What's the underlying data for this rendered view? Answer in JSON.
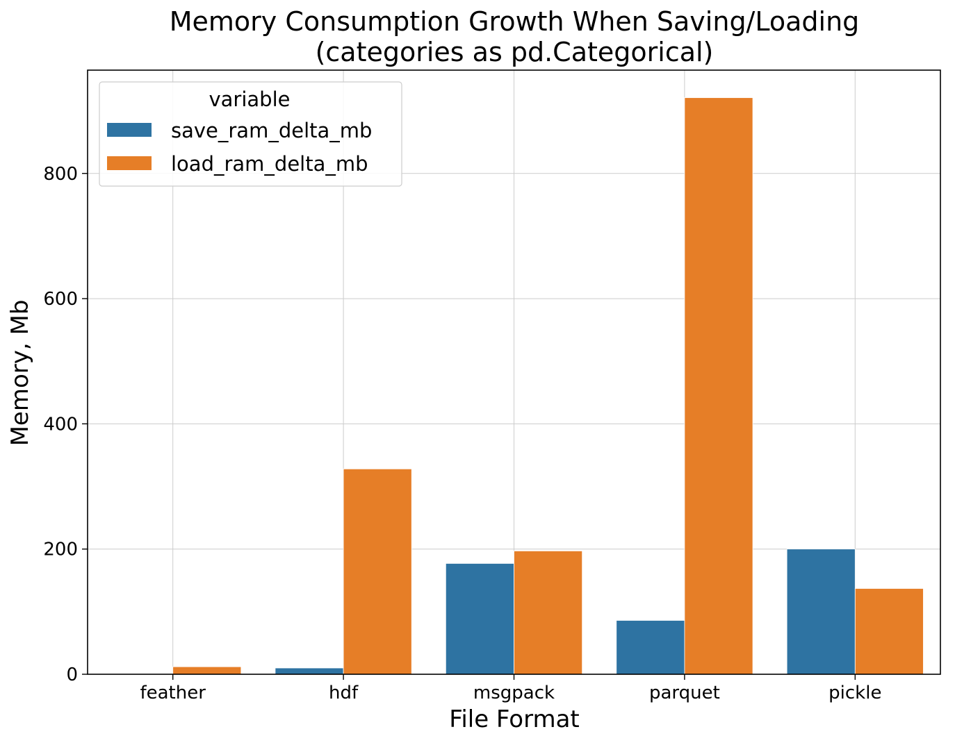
{
  "chart_data": {
    "type": "bar",
    "title": "Memory Consumption Growth When Saving/Loading",
    "subtitle": "(categories as pd.Categorical)",
    "xlabel": "File Format",
    "ylabel": "Memory, Mb",
    "categories": [
      "feather",
      "hdf",
      "msgpack",
      "parquet",
      "pickle"
    ],
    "series": [
      {
        "name": "save_ram_delta_mb",
        "color": "#2e73a2",
        "values": [
          0,
          10,
          177,
          86,
          200
        ]
      },
      {
        "name": "load_ram_delta_mb",
        "color": "#e67e27",
        "values": [
          12,
          328,
          197,
          921,
          137
        ]
      }
    ],
    "ylim": [
      0,
      965
    ],
    "yticks": [
      0,
      200,
      400,
      600,
      800
    ],
    "grid": true,
    "legend": {
      "title": "variable",
      "placement": "top-left"
    }
  }
}
